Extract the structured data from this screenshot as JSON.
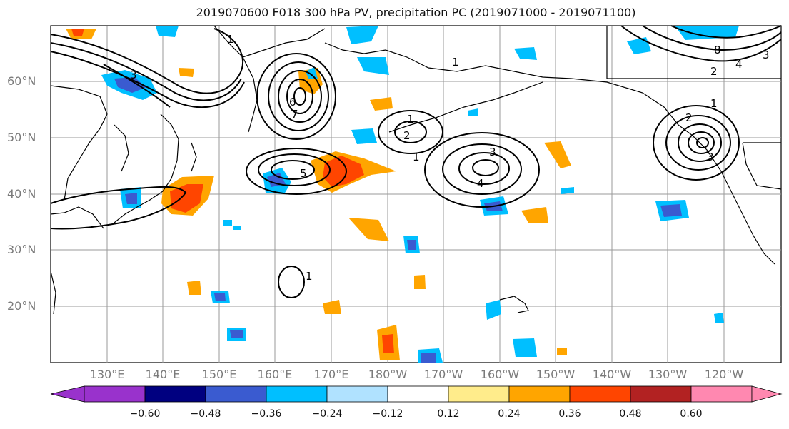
{
  "title": "2019070600 F018 300 hPa PV, precipitation PC (2019071000 - 2019071100)",
  "lat_labels": [
    "60°N",
    "50°N",
    "40°N",
    "30°N",
    "20°N"
  ],
  "lon_labels": [
    "130°E",
    "140°E",
    "150°E",
    "160°E",
    "170°E",
    "180°W",
    "170°W",
    "160°W",
    "150°W",
    "140°W",
    "130°W",
    "120°W"
  ],
  "colorbar": {
    "colors": [
      "#9932CC",
      "#000080",
      "#3A5BD0",
      "#00BFFF",
      "#B0E2FF",
      "#FFFFFF",
      "#FFEC8B",
      "#FFA500",
      "#FF4500",
      "#B22222",
      "#FF88B0"
    ],
    "tick_labels": [
      "−0.60",
      "−0.48",
      "−0.36",
      "−0.24",
      "−0.12",
      "0.12",
      "0.24",
      "0.36",
      "0.48",
      "0.60"
    ]
  },
  "contour_labels": [
    "1",
    "2",
    "3",
    "4",
    "5",
    "6",
    "7",
    "8"
  ],
  "colors": {
    "grid": "#9a9a9a",
    "coast": "#000000",
    "contour": "#000000",
    "axis_text": "#7a7a7a"
  }
}
